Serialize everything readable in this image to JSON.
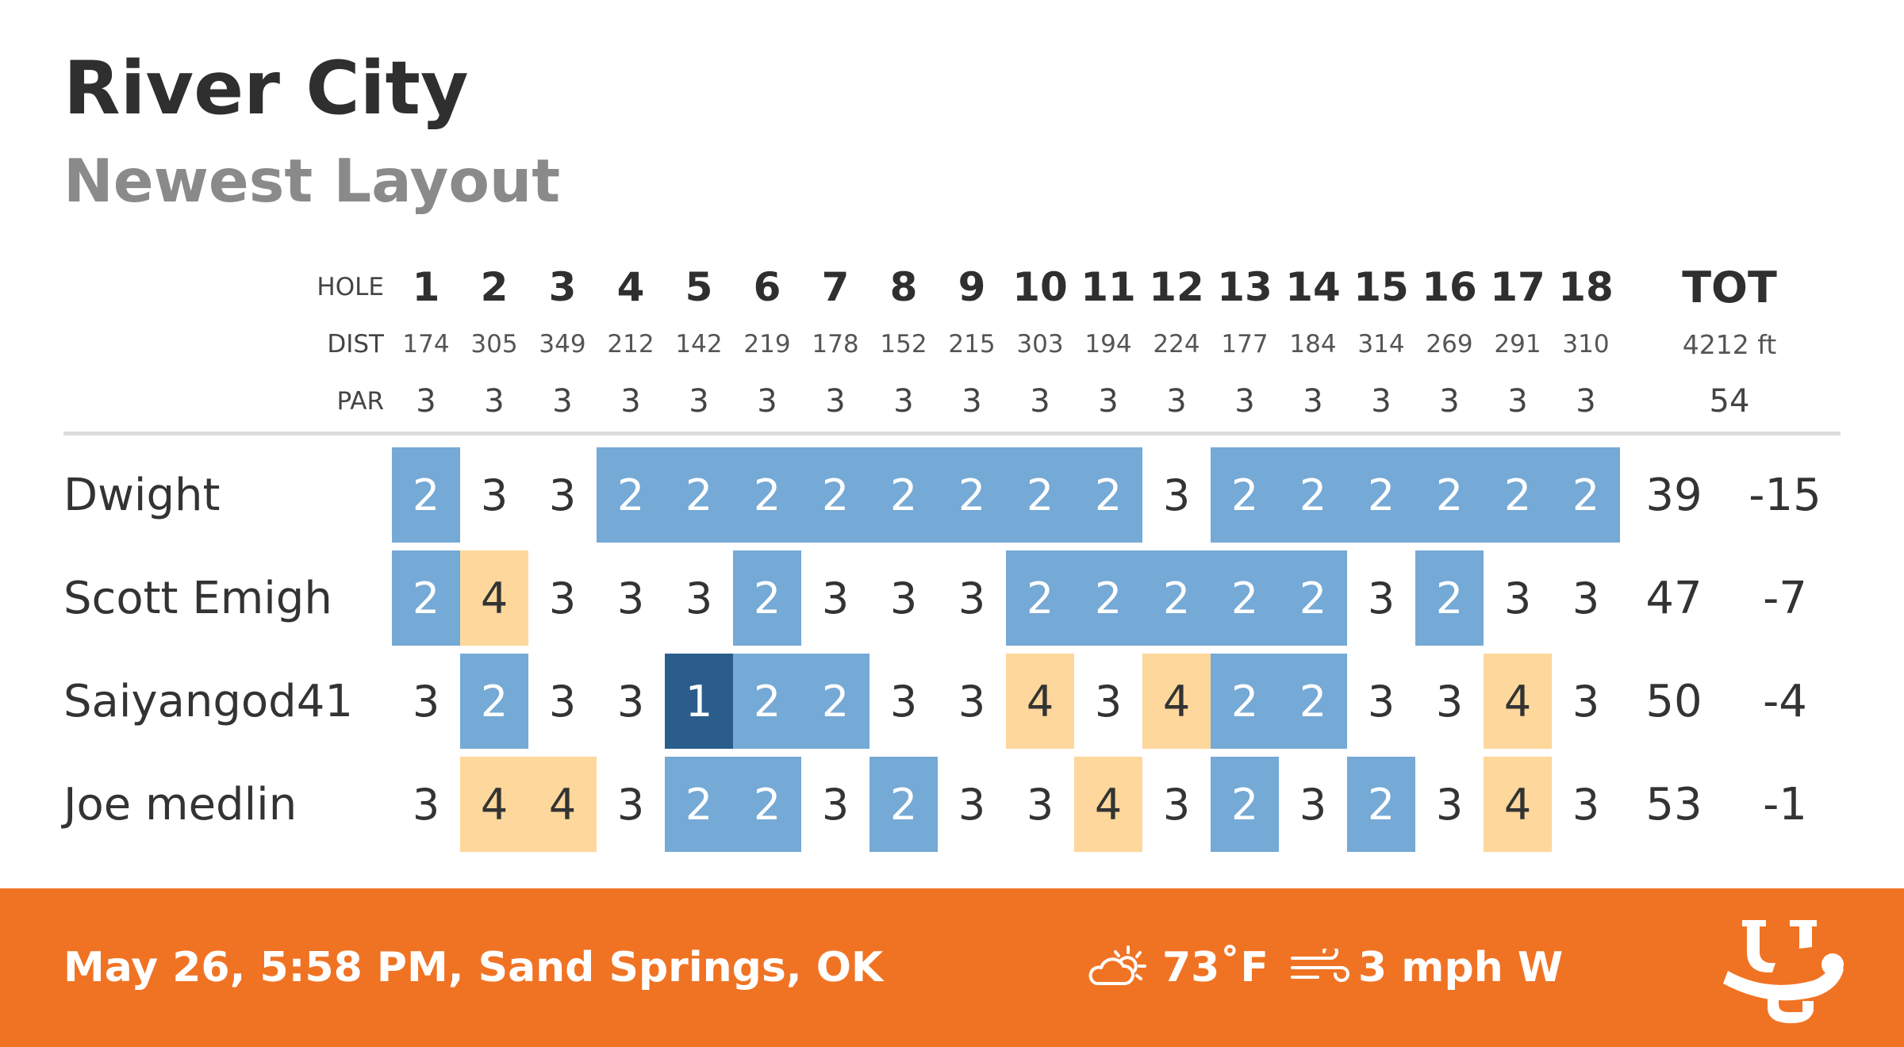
{
  "course": {
    "name": "River City",
    "layout": "Newest Layout"
  },
  "header_labels": {
    "hole": "HOLE",
    "dist": "DIST",
    "par": "PAR"
  },
  "holes": [
    {
      "number": "1",
      "dist": "174",
      "par": "3"
    },
    {
      "number": "2",
      "dist": "305",
      "par": "3"
    },
    {
      "number": "3",
      "dist": "349",
      "par": "3"
    },
    {
      "number": "4",
      "dist": "212",
      "par": "3"
    },
    {
      "number": "5",
      "dist": "142",
      "par": "3"
    },
    {
      "number": "6",
      "dist": "219",
      "par": "3"
    },
    {
      "number": "7",
      "dist": "178",
      "par": "3"
    },
    {
      "number": "8",
      "dist": "152",
      "par": "3"
    },
    {
      "number": "9",
      "dist": "215",
      "par": "3"
    },
    {
      "number": "10",
      "dist": "303",
      "par": "3"
    },
    {
      "number": "11",
      "dist": "194",
      "par": "3"
    },
    {
      "number": "12",
      "dist": "224",
      "par": "3"
    },
    {
      "number": "13",
      "dist": "177",
      "par": "3"
    },
    {
      "number": "14",
      "dist": "184",
      "par": "3"
    },
    {
      "number": "15",
      "dist": "314",
      "par": "3"
    },
    {
      "number": "16",
      "dist": "269",
      "par": "3"
    },
    {
      "number": "17",
      "dist": "291",
      "par": "3"
    },
    {
      "number": "18",
      "dist": "310",
      "par": "3"
    }
  ],
  "totals": {
    "label": "TOT",
    "dist": "4212 ft",
    "par": "54"
  },
  "players": [
    {
      "name": "Dwight",
      "scores": [
        "2",
        "3",
        "3",
        "2",
        "2",
        "2",
        "2",
        "2",
        "2",
        "2",
        "2",
        "3",
        "2",
        "2",
        "2",
        "2",
        "2",
        "2"
      ],
      "total": "39",
      "to_par": "-15"
    },
    {
      "name": "Scott Emigh",
      "scores": [
        "2",
        "4",
        "3",
        "3",
        "3",
        "2",
        "3",
        "3",
        "3",
        "2",
        "2",
        "2",
        "2",
        "2",
        "3",
        "2",
        "3",
        "3"
      ],
      "total": "47",
      "to_par": "-7"
    },
    {
      "name": "Saiyangod41",
      "scores": [
        "3",
        "2",
        "3",
        "3",
        "1",
        "2",
        "2",
        "3",
        "3",
        "4",
        "3",
        "4",
        "2",
        "2",
        "3",
        "3",
        "4",
        "3"
      ],
      "total": "50",
      "to_par": "-4"
    },
    {
      "name": "Joe medlin",
      "scores": [
        "3",
        "4",
        "4",
        "3",
        "2",
        "2",
        "3",
        "2",
        "3",
        "3",
        "4",
        "3",
        "2",
        "3",
        "2",
        "3",
        "4",
        "3"
      ],
      "total": "53",
      "to_par": "-1"
    }
  ],
  "footer": {
    "event": "May 26, 5:58 PM, Sand Springs, OK",
    "temperature": "73˚F",
    "wind": "3 mph W",
    "weather_icon": "partly-cloudy-icon",
    "wind_icon": "wind-icon",
    "logo_icon": "udisc-logo-icon"
  },
  "colors": {
    "birdie": "#75a9d6",
    "ace": "#2b5d8c",
    "bogey": "#fdd79b",
    "footer": "#f07324"
  }
}
